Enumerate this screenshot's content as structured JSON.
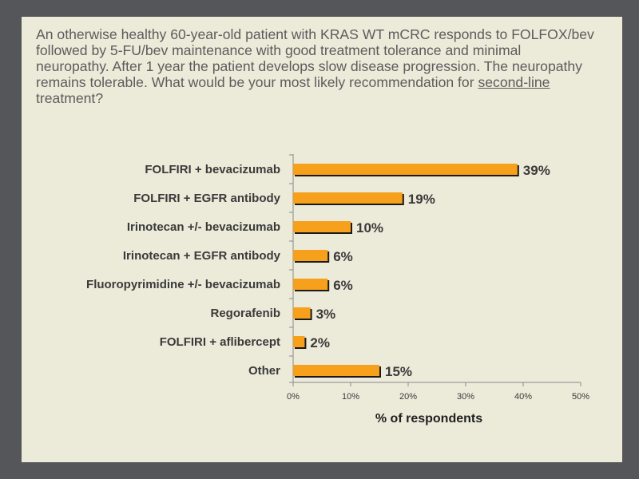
{
  "question": {
    "text_before": "An otherwise healthy 60-year-old patient with KRAS WT mCRC responds to FOLFOX/bev followed by 5-FU/bev maintenance with good treatment tolerance and minimal neuropathy. After 1 year the patient develops slow disease progression. The neuropathy remains tolerable. What would be your most likely recommendation for ",
    "underlined": "second-line",
    "text_after": " treatment?"
  },
  "colors": {
    "background": "#55565a",
    "slide": "#ecead9",
    "bar": "#f7a01b",
    "bar_shadow": "#1a1a1a"
  },
  "chart_data": {
    "type": "bar",
    "orientation": "horizontal",
    "categories": [
      "FOLFIRI + bevacizumab",
      "FOLFIRI + EGFR antibody",
      "Irinotecan +/- bevacizumab",
      "Irinotecan + EGFR antibody",
      "Fluoropyrimidine +/- bevacizumab",
      "Regorafenib",
      "FOLFIRI + aflibercept",
      "Other"
    ],
    "values": [
      39,
      19,
      10,
      6,
      6,
      3,
      2,
      15
    ],
    "value_labels": [
      "39%",
      "19%",
      "10%",
      "6%",
      "6%",
      "3%",
      "2%",
      "15%"
    ],
    "xlim": [
      0,
      50
    ],
    "xticks": [
      0,
      10,
      20,
      30,
      40,
      50
    ],
    "xtick_labels": [
      "0%",
      "10%",
      "20%",
      "30%",
      "40%",
      "50%"
    ],
    "xlabel": "% of respondents",
    "grid": false
  }
}
